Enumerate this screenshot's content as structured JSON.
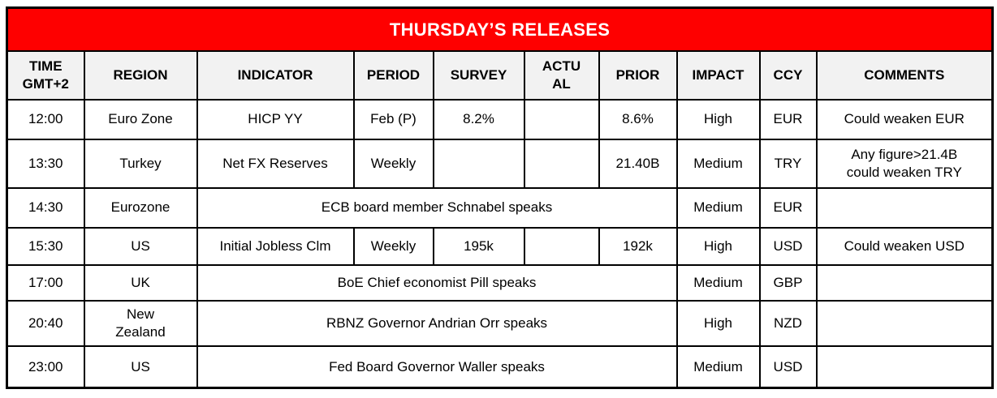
{
  "title": "THURSDAY’S RELEASES",
  "colors": {
    "title_bg": "#fe0000",
    "title_text": "#ffffff",
    "header_bg": "#f2f2f2",
    "grid_border": "#000000",
    "cell_bg": "#ffffff",
    "cell_text": "#000000"
  },
  "columns": [
    {
      "key": "time",
      "label": "TIME\nGMT+2"
    },
    {
      "key": "region",
      "label": "REGION"
    },
    {
      "key": "indicator",
      "label": "INDICATOR"
    },
    {
      "key": "period",
      "label": "PERIOD"
    },
    {
      "key": "survey",
      "label": "SURVEY"
    },
    {
      "key": "actual",
      "label": "ACTU\nAL"
    },
    {
      "key": "prior",
      "label": "PRIOR"
    },
    {
      "key": "impact",
      "label": "IMPACT"
    },
    {
      "key": "ccy",
      "label": "CCY"
    },
    {
      "key": "comments",
      "label": "COMMENTS"
    }
  ],
  "rows": [
    {
      "time": "12:00",
      "region": "Euro Zone",
      "indicator": "HICP YY",
      "period": "Feb (P)",
      "survey": "8.2%",
      "actual": "",
      "prior": "8.6%",
      "impact": "High",
      "ccy": "EUR",
      "comments": "Could weaken EUR"
    },
    {
      "time": "13:30",
      "region": "Turkey",
      "indicator": "Net FX Reserves",
      "period": "Weekly",
      "survey": "",
      "actual": "",
      "prior": "21.40B",
      "impact": "Medium",
      "ccy": "TRY",
      "comments": "Any figure>21.4B\ncould weaken TRY"
    },
    {
      "time": "14:30",
      "region": "Eurozone",
      "indicator": "ECB board member Schnabel speaks",
      "merged_event": true,
      "impact": "Medium",
      "ccy": "EUR",
      "comments": ""
    },
    {
      "time": "15:30",
      "region": "US",
      "indicator": "Initial Jobless Clm",
      "period": "Weekly",
      "survey": "195k",
      "actual": "",
      "prior": "192k",
      "impact": "High",
      "ccy": "USD",
      "comments": "Could weaken USD"
    },
    {
      "time": "17:00",
      "region": "UK",
      "indicator": "BoE Chief economist Pill speaks",
      "merged_event": true,
      "impact": "Medium",
      "ccy": "GBP",
      "comments": ""
    },
    {
      "time": "20:40",
      "region": "New\nZealand",
      "indicator": "RBNZ Governor Andrian Orr speaks",
      "merged_event": true,
      "impact": "High",
      "ccy": "NZD",
      "comments": ""
    },
    {
      "time": "23:00",
      "region": "US",
      "indicator": "Fed Board Governor Waller speaks",
      "merged_event": true,
      "impact": "Medium",
      "ccy": "USD",
      "comments": ""
    }
  ]
}
